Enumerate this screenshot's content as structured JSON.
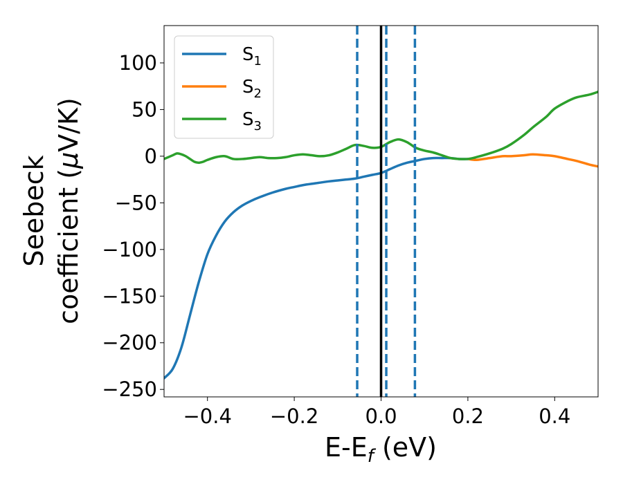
{
  "chart_data": {
    "type": "line",
    "xlabel": {
      "base": "E-E",
      "sub": "f",
      "tail": " (eV)"
    },
    "ylabel": {
      "line1": "Seebeck",
      "line2_pre": "coefficient  (",
      "mu": "μ",
      "line2_post": "V/K)"
    },
    "xlim": [
      -0.5,
      0.5
    ],
    "ylim": [
      -258,
      140
    ],
    "xticks": [
      {
        "value": -0.4,
        "label": "−0.4"
      },
      {
        "value": -0.2,
        "label": "−0.2"
      },
      {
        "value": 0.0,
        "label": "0.0"
      },
      {
        "value": 0.2,
        "label": "0.2"
      },
      {
        "value": 0.4,
        "label": "0.4"
      }
    ],
    "yticks": [
      {
        "value": 100,
        "label": "100"
      },
      {
        "value": 50,
        "label": "50"
      },
      {
        "value": 0,
        "label": "0"
      },
      {
        "value": -50,
        "label": "−50"
      },
      {
        "value": -100,
        "label": "−100"
      },
      {
        "value": -150,
        "label": "−150"
      },
      {
        "value": -200,
        "label": "−200"
      },
      {
        "value": -250,
        "label": "−250"
      }
    ],
    "series": [
      {
        "name": "S",
        "sub": "1",
        "color": "#1f77b4",
        "x": [
          -0.5,
          -0.48,
          -0.46,
          -0.44,
          -0.42,
          -0.4,
          -0.38,
          -0.36,
          -0.34,
          -0.32,
          -0.3,
          -0.28,
          -0.25,
          -0.22,
          -0.2,
          -0.18,
          -0.15,
          -0.12,
          -0.1,
          -0.08,
          -0.06,
          -0.04,
          -0.02,
          0.0,
          0.02,
          0.04,
          0.06,
          0.08,
          0.1,
          0.12,
          0.14,
          0.16,
          0.18,
          0.2
        ],
        "y": [
          -238,
          -228,
          -205,
          -170,
          -135,
          -105,
          -85,
          -70,
          -60,
          -53,
          -48,
          -44,
          -39,
          -35,
          -33,
          -31,
          -29,
          -27,
          -26,
          -25,
          -24,
          -22,
          -20,
          -18,
          -14,
          -10,
          -7,
          -5,
          -3,
          -2,
          -2,
          -2,
          -3,
          -3
        ]
      },
      {
        "name": "S",
        "sub": "2",
        "color": "#ff7f0e",
        "x": [
          0.2,
          0.22,
          0.25,
          0.28,
          0.3,
          0.33,
          0.35,
          0.38,
          0.4,
          0.43,
          0.45,
          0.48,
          0.5
        ],
        "y": [
          -3,
          -4,
          -2,
          0,
          0,
          1,
          2,
          1,
          0,
          -3,
          -5,
          -9,
          -11
        ]
      },
      {
        "name": "S",
        "sub": "3",
        "color": "#2ca02c",
        "x": [
          -0.5,
          -0.48,
          -0.47,
          -0.46,
          -0.45,
          -0.44,
          -0.43,
          -0.42,
          -0.41,
          -0.4,
          -0.38,
          -0.36,
          -0.34,
          -0.32,
          -0.3,
          -0.28,
          -0.26,
          -0.24,
          -0.22,
          -0.2,
          -0.18,
          -0.16,
          -0.14,
          -0.12,
          -0.1,
          -0.08,
          -0.06,
          -0.04,
          -0.02,
          0.0,
          0.02,
          0.04,
          0.06,
          0.08,
          0.1,
          0.12,
          0.14,
          0.16,
          0.18,
          0.2,
          0.22,
          0.25,
          0.28,
          0.3,
          0.33,
          0.35,
          0.38,
          0.4,
          0.43,
          0.45,
          0.48,
          0.5
        ],
        "y": [
          -3,
          1,
          3,
          2,
          0,
          -3,
          -6,
          -7,
          -6,
          -4,
          -1,
          0,
          -3,
          -3,
          -2,
          -1,
          -2,
          -2,
          -1,
          1,
          2,
          1,
          0,
          1,
          4,
          8,
          12,
          11,
          9,
          10,
          15,
          18,
          15,
          9,
          6,
          4,
          1,
          -2,
          -3,
          -3,
          -1,
          3,
          8,
          13,
          23,
          31,
          42,
          51,
          59,
          63,
          66,
          69
        ]
      }
    ],
    "vlines": [
      {
        "x": -0.055,
        "style": "dashed",
        "color": "#1f77b4"
      },
      {
        "x": 0.0,
        "style": "solid",
        "color": "#000000"
      },
      {
        "x": 0.012,
        "style": "dashed",
        "color": "#1f77b4"
      },
      {
        "x": 0.078,
        "style": "dashed",
        "color": "#1f77b4"
      }
    ],
    "legend_position": "top-left",
    "grid": false
  }
}
